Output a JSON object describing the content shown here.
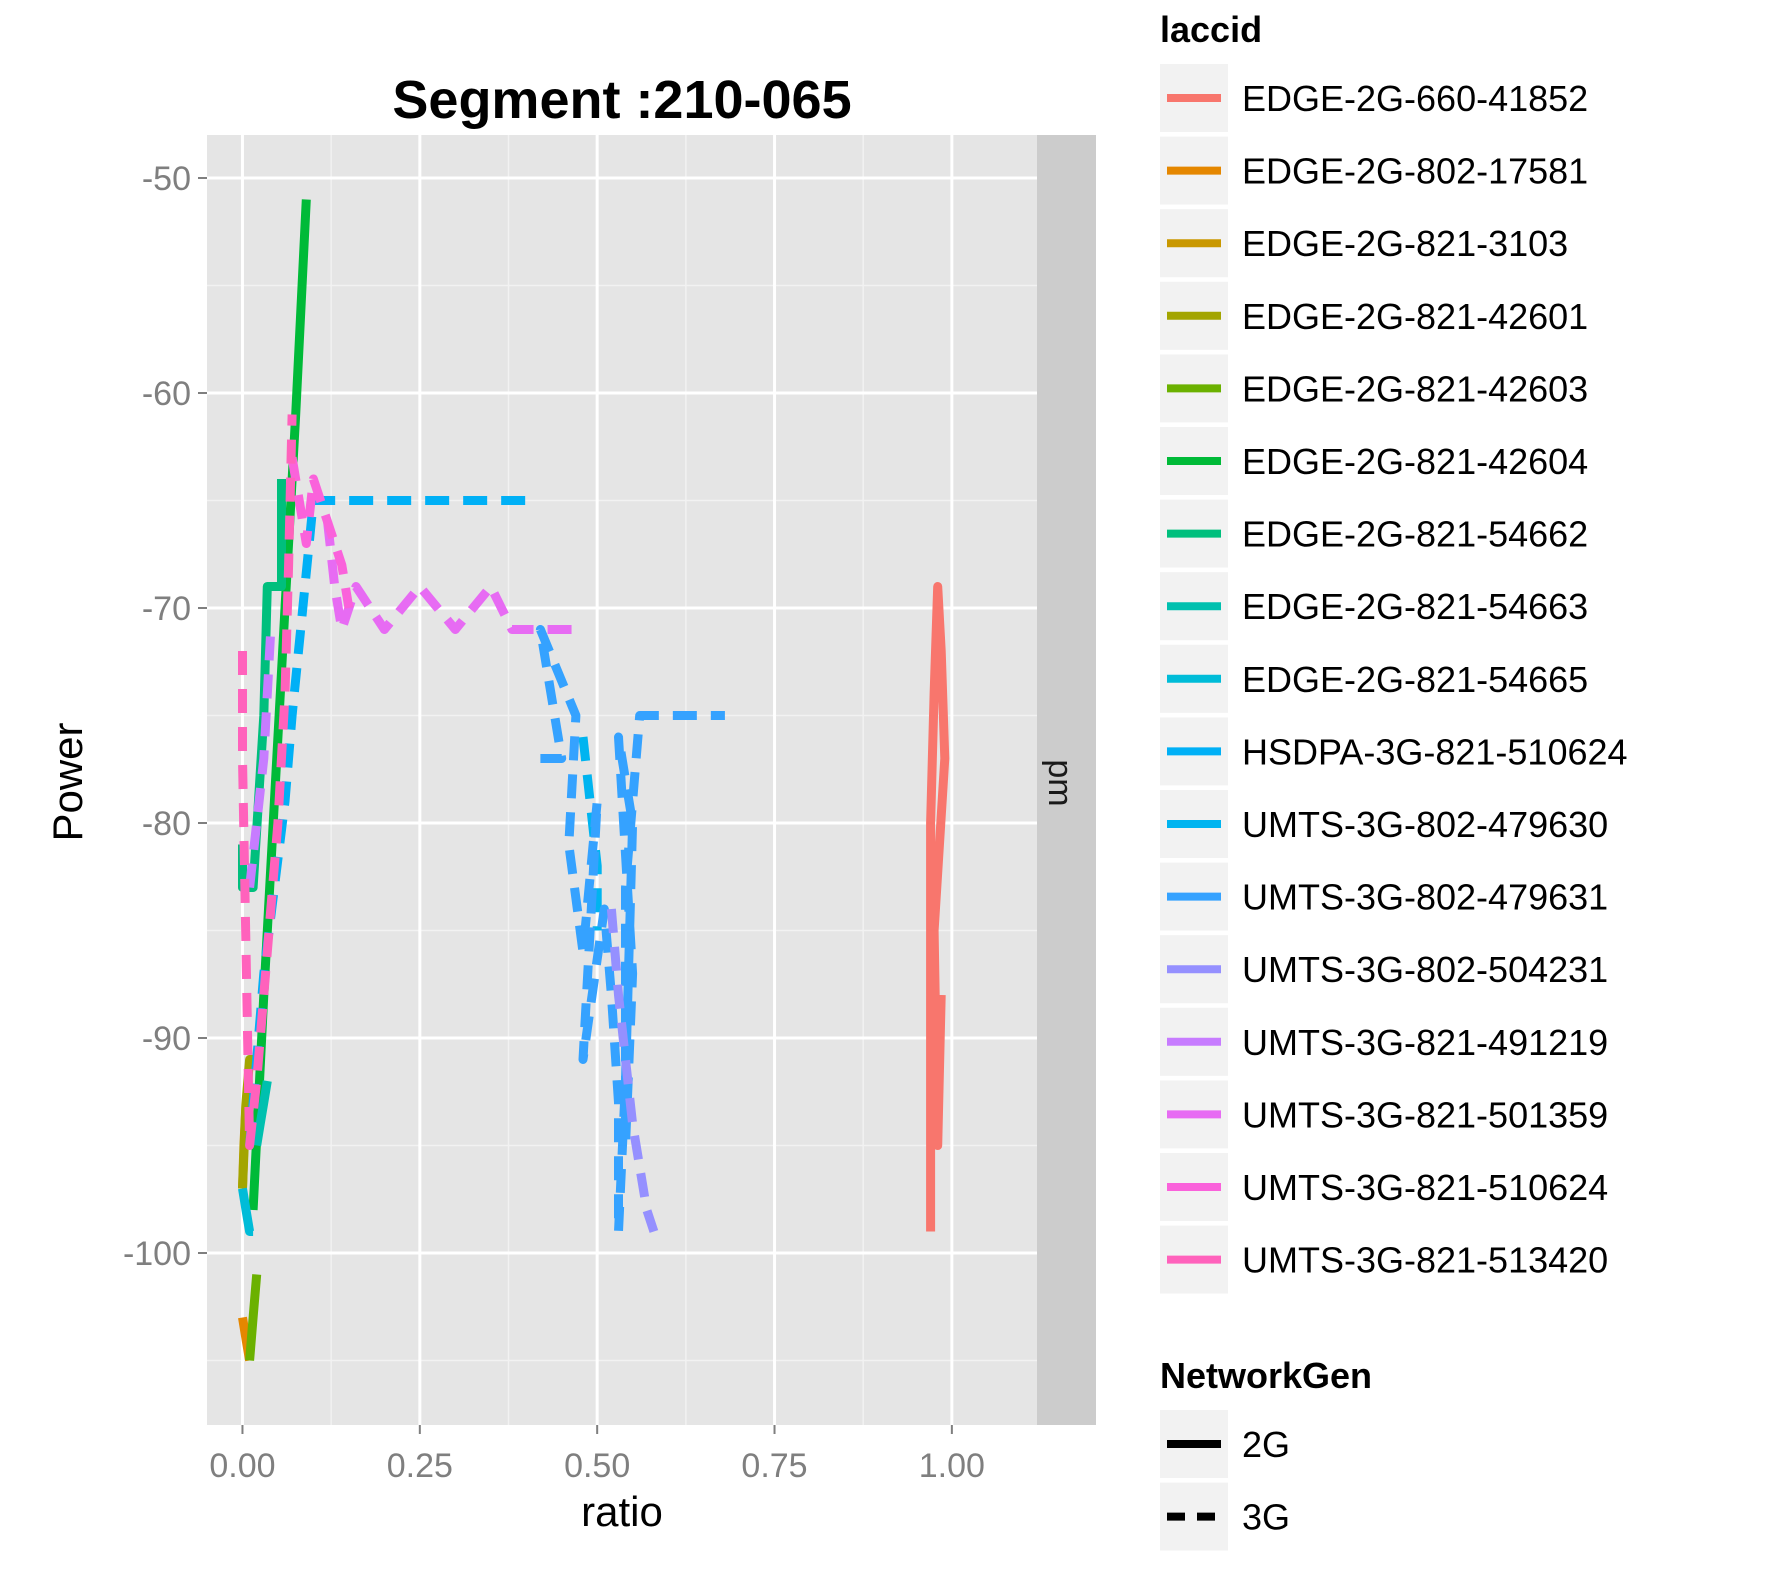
{
  "chart_data": {
    "type": "line",
    "title": "Segment :210-065",
    "xlabel": "ratio",
    "ylabel": "Power",
    "xlim": [
      -0.05,
      1.12
    ],
    "ylim": [
      -108,
      -48
    ],
    "x_ticks": [
      {
        "value": 0,
        "label": "0.00"
      },
      {
        "value": 0.25,
        "label": "0.25"
      },
      {
        "value": 0.5,
        "label": "0.50"
      },
      {
        "value": 0.75,
        "label": "0.75"
      },
      {
        "value": 1.0,
        "label": "1.00"
      }
    ],
    "y_ticks": [
      {
        "value": -50,
        "label": "-50"
      },
      {
        "value": -60,
        "label": "-60"
      },
      {
        "value": -70,
        "label": "-70"
      },
      {
        "value": -80,
        "label": "-80"
      },
      {
        "value": -90,
        "label": "-90"
      },
      {
        "value": -100,
        "label": "-100"
      }
    ],
    "facet_label": "pm",
    "grid": true,
    "legend_placement": "right",
    "legend": {
      "laccid_title": "laccid",
      "networkgen_title": "NetworkGen",
      "networkgen_entries": [
        {
          "label": "2G",
          "dash": "solid"
        },
        {
          "label": "3G",
          "dash": "dashed"
        }
      ]
    },
    "series": [
      {
        "name": "EDGE-2G-660-41852",
        "color": "#F8766D",
        "gen": "2G",
        "x": [
          0.97,
          0.97,
          0.975,
          0.98,
          0.985,
          0.99,
          0.975,
          0.98,
          0.985
        ],
        "y": [
          -99,
          -80,
          -74,
          -69,
          -72,
          -77,
          -85,
          -95,
          -88
        ]
      },
      {
        "name": "EDGE-2G-802-17581",
        "color": "#E58700",
        "gen": "2G",
        "x": [
          0.0,
          0.005,
          0.01
        ],
        "y": [
          -103,
          -104,
          -105
        ]
      },
      {
        "name": "EDGE-2G-821-3103",
        "color": "#C99800",
        "gen": "2G",
        "x": [
          0.0,
          0.002,
          0.005
        ],
        "y": [
          -97,
          -95,
          -93
        ]
      },
      {
        "name": "EDGE-2G-821-42601",
        "color": "#A3A500",
        "gen": "2G",
        "x": [
          0.0,
          0.005,
          0.01,
          0.02
        ],
        "y": [
          -97,
          -93,
          -91,
          -91
        ]
      },
      {
        "name": "EDGE-2G-821-42603",
        "color": "#6BB100",
        "gen": "2G",
        "x": [
          0.01,
          0.015,
          0.02
        ],
        "y": [
          -105,
          -103,
          -101
        ]
      },
      {
        "name": "EDGE-2G-821-42604",
        "color": "#00BA38",
        "gen": "2G",
        "x": [
          0.015,
          0.03,
          0.045,
          0.06,
          0.075,
          0.09
        ],
        "y": [
          -98,
          -88,
          -79,
          -70,
          -61,
          -51
        ]
      },
      {
        "name": "EDGE-2G-821-54662",
        "color": "#00BF7D",
        "gen": "2G",
        "x": [
          0.0,
          0.0,
          0.015,
          0.03,
          0.035,
          0.055,
          0.055
        ],
        "y": [
          -81,
          -83,
          -83,
          -75,
          -69,
          -69,
          -64
        ]
      },
      {
        "name": "EDGE-2G-821-54663",
        "color": "#00C0AF",
        "gen": "2G",
        "x": [
          0.02,
          0.025,
          0.03,
          0.035
        ],
        "y": [
          -95,
          -94,
          -93,
          -92
        ]
      },
      {
        "name": "EDGE-2G-821-54665",
        "color": "#00BCD8",
        "gen": "2G",
        "x": [
          0.0,
          0.005,
          0.01,
          0.015
        ],
        "y": [
          -97,
          -98,
          -99,
          -99
        ]
      },
      {
        "name": "HSDPA-3G-821-510624",
        "color": "#00B0F6",
        "gen": "3G",
        "x": [
          0.01,
          0.02,
          0.03,
          0.045,
          0.06,
          0.07,
          0.085,
          0.1,
          0.12,
          0.25,
          0.4
        ],
        "y": [
          -95,
          -91,
          -87,
          -83,
          -79,
          -75,
          -70,
          -65,
          -65,
          -65,
          -65
        ]
      },
      {
        "name": "UMTS-3G-802-479630",
        "color": "#00B4F0",
        "gen": "3G",
        "x": [
          0.48,
          0.49,
          0.5,
          0.5
        ],
        "y": [
          -76,
          -79,
          -82,
          -85
        ]
      },
      {
        "name": "UMTS-3G-802-479631",
        "color": "#35A2FF",
        "gen": "3G",
        "x": [
          0.42,
          0.45,
          0.42,
          0.47,
          0.46,
          0.48,
          0.5,
          0.48,
          0.51,
          0.52,
          0.53,
          0.53,
          0.54,
          0.55,
          0.53,
          0.55,
          0.54,
          0.54,
          0.56,
          0.6,
          0.68
        ],
        "y": [
          -77,
          -77,
          -71,
          -75,
          -81,
          -86,
          -79,
          -91,
          -84,
          -88,
          -93,
          -99,
          -92,
          -80,
          -76,
          -87,
          -95,
          -83,
          -75,
          -75,
          -75
        ]
      },
      {
        "name": "UMTS-3G-802-504231",
        "color": "#9590FF",
        "gen": "3G",
        "x": [
          0.52,
          0.53,
          0.54,
          0.55,
          0.56,
          0.57,
          0.58
        ],
        "y": [
          -84,
          -88,
          -91,
          -94,
          -96,
          -98,
          -99
        ]
      },
      {
        "name": "UMTS-3G-821-491219",
        "color": "#C77CFF",
        "gen": "3G",
        "x": [
          0.01,
          0.02,
          0.03,
          0.035,
          0.04
        ],
        "y": [
          -83,
          -80,
          -77,
          -74,
          -71
        ]
      },
      {
        "name": "UMTS-3G-821-501359",
        "color": "#E76BF3",
        "gen": "3G",
        "x": [
          0.12,
          0.13,
          0.14,
          0.16,
          0.2,
          0.25,
          0.3,
          0.35,
          0.38,
          0.44,
          0.48
        ],
        "y": [
          -66,
          -69,
          -71,
          -69,
          -71,
          -69,
          -71,
          -69,
          -71,
          -71,
          -71
        ]
      },
      {
        "name": "UMTS-3G-821-510624",
        "color": "#FA62DB",
        "gen": "3G",
        "x": [
          0.07,
          0.08,
          0.09,
          0.1,
          0.11,
          0.12,
          0.13,
          0.14,
          0.15
        ],
        "y": [
          -63,
          -65,
          -67,
          -64,
          -65,
          -66,
          -67,
          -68,
          -70
        ]
      },
      {
        "name": "UMTS-3G-821-513420",
        "color": "#FF62BC",
        "gen": "3G",
        "x": [
          0.0,
          0.0,
          0.01,
          0.02,
          0.03,
          0.04,
          0.05,
          0.06,
          0.065,
          0.07
        ],
        "y": [
          -72,
          -77,
          -95,
          -92,
          -88,
          -84,
          -80,
          -74,
          -68,
          -61
        ]
      }
    ]
  }
}
